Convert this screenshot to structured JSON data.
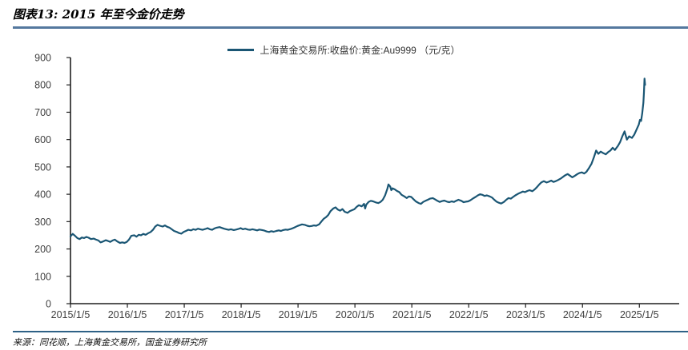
{
  "page": {
    "title": "图表13: 2015 年至今金价走势",
    "source_note": "来源：同花顺，上海黄金交易所，国金证券研究所"
  },
  "colors": {
    "line": "#1A5674",
    "axis": "#1F1F1F",
    "tick_text": "#3F3F3F",
    "top_rule": "#54789E",
    "bottom_rule": "#2E6186"
  },
  "chart_data": {
    "type": "line",
    "title": "2015 年至今金价走势",
    "xlabel": "",
    "ylabel": "",
    "unit": "元/克",
    "grid": false,
    "legend_position": "top-center",
    "legend": [
      {
        "label": "上海黄金交易所:收盘价:黄金:Au9999 （元/克）",
        "color": "#1A5674"
      }
    ],
    "ylim": [
      0,
      900
    ],
    "y_ticks": [
      0,
      100,
      200,
      300,
      400,
      500,
      600,
      700,
      800,
      900
    ],
    "xlim": [
      2015.01,
      2025.71
    ],
    "x_tick_positions": [
      2015.01,
      2016.01,
      2017.01,
      2018.01,
      2019.01,
      2020.01,
      2021.01,
      2022.01,
      2023.01,
      2024.01,
      2025.01
    ],
    "x_tick_labels": [
      "2015/1/5",
      "2016/1/5",
      "2017/1/5",
      "2018/1/5",
      "2019/1/5",
      "2020/1/5",
      "2021/1/5",
      "2022/1/5",
      "2023/1/5",
      "2024/1/5",
      "2025/1/5"
    ],
    "series": [
      {
        "name": "上海黄金交易所:收盘价:黄金:Au9999 （元/克）",
        "color": "#1A5674",
        "points": [
          [
            2015.01,
            246
          ],
          [
            2015.05,
            255
          ],
          [
            2015.09,
            248
          ],
          [
            2015.13,
            240
          ],
          [
            2015.17,
            236
          ],
          [
            2015.21,
            242
          ],
          [
            2015.25,
            240
          ],
          [
            2015.29,
            244
          ],
          [
            2015.33,
            241
          ],
          [
            2015.37,
            236
          ],
          [
            2015.42,
            238
          ],
          [
            2015.46,
            234
          ],
          [
            2015.5,
            231
          ],
          [
            2015.54,
            224
          ],
          [
            2015.58,
            227
          ],
          [
            2015.63,
            232
          ],
          [
            2015.67,
            229
          ],
          [
            2015.71,
            226
          ],
          [
            2015.75,
            231
          ],
          [
            2015.79,
            234
          ],
          [
            2015.83,
            228
          ],
          [
            2015.88,
            222
          ],
          [
            2015.92,
            224
          ],
          [
            2015.96,
            222
          ],
          [
            2016.0,
            226
          ],
          [
            2016.04,
            235
          ],
          [
            2016.08,
            248
          ],
          [
            2016.13,
            250
          ],
          [
            2016.17,
            245
          ],
          [
            2016.21,
            252
          ],
          [
            2016.25,
            250
          ],
          [
            2016.29,
            255
          ],
          [
            2016.33,
            252
          ],
          [
            2016.38,
            258
          ],
          [
            2016.42,
            262
          ],
          [
            2016.46,
            270
          ],
          [
            2016.5,
            282
          ],
          [
            2016.54,
            288
          ],
          [
            2016.58,
            285
          ],
          [
            2016.63,
            282
          ],
          [
            2016.67,
            286
          ],
          [
            2016.71,
            281
          ],
          [
            2016.75,
            278
          ],
          [
            2016.79,
            272
          ],
          [
            2016.83,
            266
          ],
          [
            2016.88,
            262
          ],
          [
            2016.92,
            258
          ],
          [
            2016.96,
            256
          ],
          [
            2017.0,
            262
          ],
          [
            2017.04,
            266
          ],
          [
            2017.08,
            270
          ],
          [
            2017.13,
            268
          ],
          [
            2017.17,
            272
          ],
          [
            2017.21,
            270
          ],
          [
            2017.25,
            274
          ],
          [
            2017.29,
            272
          ],
          [
            2017.33,
            270
          ],
          [
            2017.38,
            273
          ],
          [
            2017.42,
            276
          ],
          [
            2017.46,
            272
          ],
          [
            2017.5,
            270
          ],
          [
            2017.54,
            275
          ],
          [
            2017.58,
            278
          ],
          [
            2017.63,
            280
          ],
          [
            2017.67,
            277
          ],
          [
            2017.71,
            274
          ],
          [
            2017.75,
            272
          ],
          [
            2017.79,
            270
          ],
          [
            2017.83,
            272
          ],
          [
            2017.88,
            269
          ],
          [
            2017.92,
            271
          ],
          [
            2017.96,
            273
          ],
          [
            2018.0,
            276
          ],
          [
            2018.04,
            272
          ],
          [
            2018.08,
            274
          ],
          [
            2018.13,
            271
          ],
          [
            2018.17,
            270
          ],
          [
            2018.21,
            272
          ],
          [
            2018.25,
            270
          ],
          [
            2018.29,
            268
          ],
          [
            2018.33,
            271
          ],
          [
            2018.38,
            269
          ],
          [
            2018.42,
            267
          ],
          [
            2018.46,
            264
          ],
          [
            2018.5,
            262
          ],
          [
            2018.54,
            265
          ],
          [
            2018.58,
            263
          ],
          [
            2018.63,
            266
          ],
          [
            2018.67,
            268
          ],
          [
            2018.71,
            266
          ],
          [
            2018.75,
            269
          ],
          [
            2018.79,
            271
          ],
          [
            2018.83,
            270
          ],
          [
            2018.88,
            273
          ],
          [
            2018.92,
            276
          ],
          [
            2018.96,
            280
          ],
          [
            2019.0,
            284
          ],
          [
            2019.04,
            287
          ],
          [
            2019.08,
            290
          ],
          [
            2019.13,
            288
          ],
          [
            2019.17,
            285
          ],
          [
            2019.21,
            283
          ],
          [
            2019.25,
            284
          ],
          [
            2019.29,
            286
          ],
          [
            2019.33,
            285
          ],
          [
            2019.38,
            290
          ],
          [
            2019.42,
            300
          ],
          [
            2019.46,
            310
          ],
          [
            2019.5,
            316
          ],
          [
            2019.54,
            324
          ],
          [
            2019.58,
            338
          ],
          [
            2019.63,
            348
          ],
          [
            2019.67,
            352
          ],
          [
            2019.71,
            344
          ],
          [
            2019.75,
            340
          ],
          [
            2019.79,
            346
          ],
          [
            2019.83,
            336
          ],
          [
            2019.88,
            332
          ],
          [
            2019.92,
            338
          ],
          [
            2019.96,
            342
          ],
          [
            2020.0,
            345
          ],
          [
            2020.04,
            354
          ],
          [
            2020.08,
            360
          ],
          [
            2020.13,
            356
          ],
          [
            2020.17,
            365
          ],
          [
            2020.19,
            348
          ],
          [
            2020.21,
            362
          ],
          [
            2020.25,
            372
          ],
          [
            2020.29,
            376
          ],
          [
            2020.33,
            374
          ],
          [
            2020.38,
            370
          ],
          [
            2020.42,
            368
          ],
          [
            2020.46,
            372
          ],
          [
            2020.5,
            380
          ],
          [
            2020.54,
            396
          ],
          [
            2020.58,
            420
          ],
          [
            2020.6,
            436
          ],
          [
            2020.63,
            428
          ],
          [
            2020.65,
            415
          ],
          [
            2020.67,
            422
          ],
          [
            2020.71,
            418
          ],
          [
            2020.75,
            412
          ],
          [
            2020.79,
            408
          ],
          [
            2020.83,
            398
          ],
          [
            2020.88,
            392
          ],
          [
            2020.92,
            386
          ],
          [
            2020.96,
            392
          ],
          [
            2021.0,
            390
          ],
          [
            2021.04,
            382
          ],
          [
            2021.08,
            374
          ],
          [
            2021.13,
            368
          ],
          [
            2021.17,
            365
          ],
          [
            2021.21,
            372
          ],
          [
            2021.25,
            376
          ],
          [
            2021.29,
            380
          ],
          [
            2021.33,
            384
          ],
          [
            2021.38,
            386
          ],
          [
            2021.42,
            381
          ],
          [
            2021.46,
            376
          ],
          [
            2021.5,
            372
          ],
          [
            2021.54,
            375
          ],
          [
            2021.58,
            377
          ],
          [
            2021.63,
            373
          ],
          [
            2021.67,
            371
          ],
          [
            2021.71,
            374
          ],
          [
            2021.75,
            372
          ],
          [
            2021.79,
            376
          ],
          [
            2021.83,
            380
          ],
          [
            2021.88,
            376
          ],
          [
            2021.92,
            371
          ],
          [
            2021.96,
            373
          ],
          [
            2022.0,
            374
          ],
          [
            2022.04,
            378
          ],
          [
            2022.08,
            384
          ],
          [
            2022.13,
            390
          ],
          [
            2022.17,
            396
          ],
          [
            2022.21,
            400
          ],
          [
            2022.25,
            398
          ],
          [
            2022.29,
            394
          ],
          [
            2022.33,
            396
          ],
          [
            2022.38,
            392
          ],
          [
            2022.42,
            388
          ],
          [
            2022.46,
            380
          ],
          [
            2022.5,
            373
          ],
          [
            2022.54,
            369
          ],
          [
            2022.58,
            366
          ],
          [
            2022.63,
            372
          ],
          [
            2022.67,
            380
          ],
          [
            2022.71,
            386
          ],
          [
            2022.75,
            384
          ],
          [
            2022.79,
            390
          ],
          [
            2022.83,
            396
          ],
          [
            2022.88,
            402
          ],
          [
            2022.92,
            406
          ],
          [
            2022.96,
            410
          ],
          [
            2023.0,
            408
          ],
          [
            2023.04,
            412
          ],
          [
            2023.08,
            415
          ],
          [
            2023.13,
            411
          ],
          [
            2023.17,
            418
          ],
          [
            2023.21,
            426
          ],
          [
            2023.25,
            436
          ],
          [
            2023.29,
            444
          ],
          [
            2023.33,
            448
          ],
          [
            2023.38,
            443
          ],
          [
            2023.42,
            446
          ],
          [
            2023.46,
            450
          ],
          [
            2023.5,
            445
          ],
          [
            2023.54,
            448
          ],
          [
            2023.58,
            452
          ],
          [
            2023.63,
            458
          ],
          [
            2023.67,
            464
          ],
          [
            2023.71,
            470
          ],
          [
            2023.75,
            474
          ],
          [
            2023.79,
            468
          ],
          [
            2023.83,
            462
          ],
          [
            2023.88,
            468
          ],
          [
            2023.92,
            474
          ],
          [
            2023.96,
            478
          ],
          [
            2024.0,
            480
          ],
          [
            2024.04,
            476
          ],
          [
            2024.08,
            482
          ],
          [
            2024.13,
            498
          ],
          [
            2024.17,
            512
          ],
          [
            2024.21,
            535
          ],
          [
            2024.25,
            560
          ],
          [
            2024.29,
            548
          ],
          [
            2024.33,
            556
          ],
          [
            2024.38,
            550
          ],
          [
            2024.42,
            546
          ],
          [
            2024.46,
            554
          ],
          [
            2024.5,
            560
          ],
          [
            2024.54,
            570
          ],
          [
            2024.58,
            562
          ],
          [
            2024.63,
            576
          ],
          [
            2024.67,
            590
          ],
          [
            2024.71,
            612
          ],
          [
            2024.75,
            630
          ],
          [
            2024.79,
            600
          ],
          [
            2024.83,
            612
          ],
          [
            2024.88,
            606
          ],
          [
            2024.92,
            618
          ],
          [
            2024.96,
            636
          ],
          [
            2025.0,
            655
          ],
          [
            2025.02,
            672
          ],
          [
            2025.04,
            668
          ],
          [
            2025.06,
            695
          ],
          [
            2025.08,
            735
          ],
          [
            2025.09,
            772
          ],
          [
            2025.1,
            823
          ],
          [
            2025.11,
            800
          ]
        ]
      }
    ]
  }
}
